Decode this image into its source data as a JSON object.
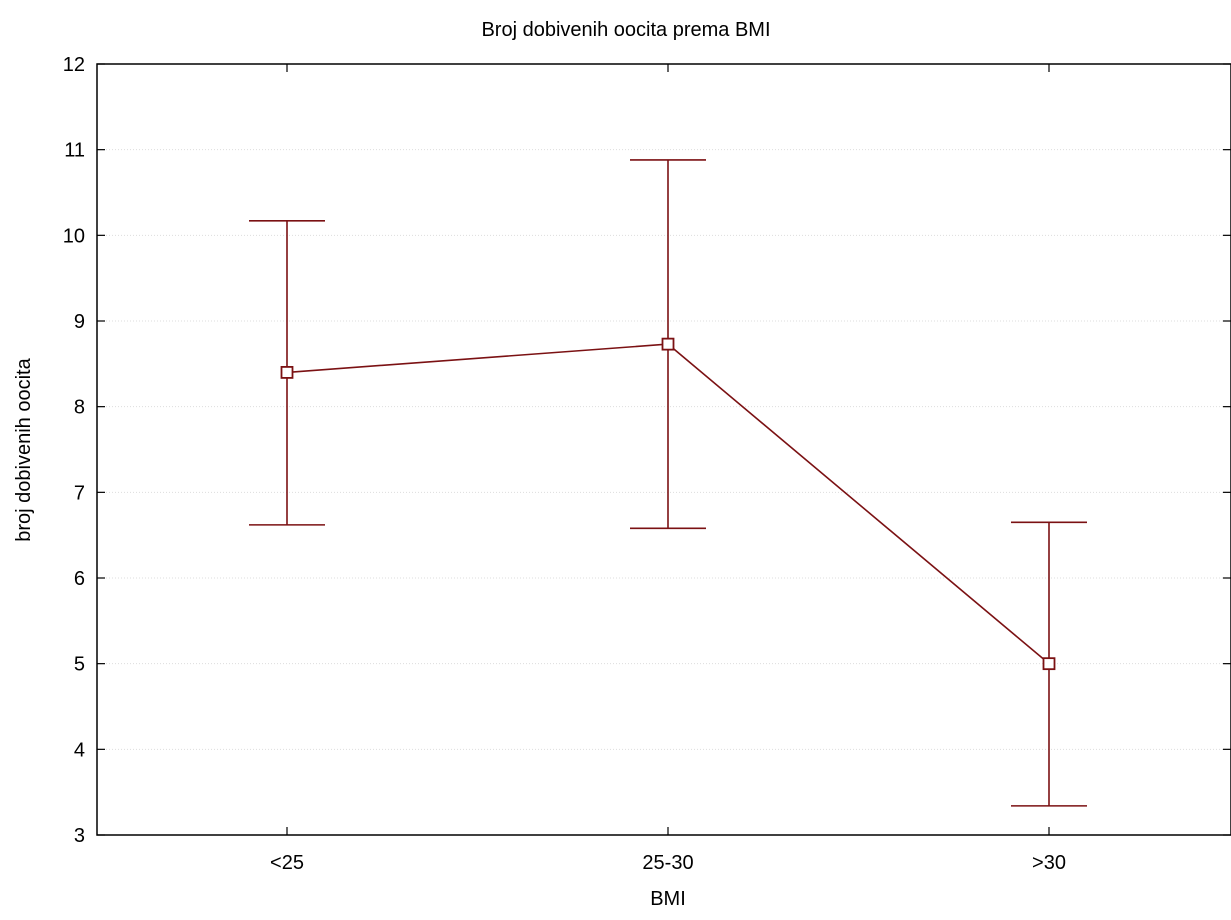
{
  "chart_data": {
    "type": "line",
    "title": "Broj dobivenih oocita prema BMI",
    "xlabel": "BMI",
    "ylabel": "broj dobivenih oocita",
    "categories": [
      "<25",
      "25-30",
      ">30"
    ],
    "series": [
      {
        "values": [
          8.4,
          8.73,
          5.0
        ],
        "lower": [
          6.62,
          6.58,
          3.34
        ],
        "upper": [
          10.17,
          10.88,
          6.65
        ],
        "color": "#7b1113"
      }
    ],
    "ylim": [
      3,
      12
    ],
    "yticks": [
      "3",
      "4",
      "5",
      "6",
      "7",
      "8",
      "9",
      "10",
      "11",
      "12"
    ],
    "grid": true,
    "grid_color": "#dddddd",
    "axis_color": "#000000",
    "marker": "square"
  }
}
